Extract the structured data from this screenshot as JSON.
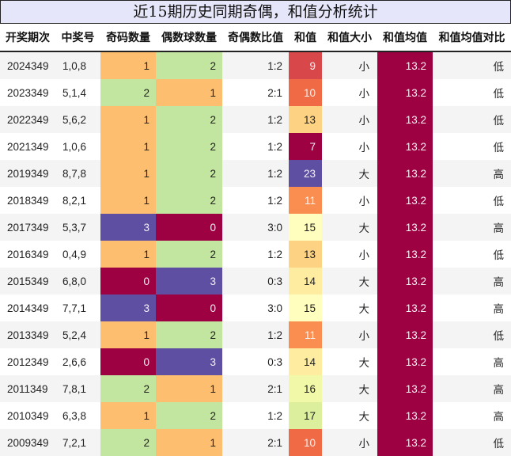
{
  "title": "近15期历史同期奇偶，和值分析统计",
  "columns": [
    "开奖期次",
    "中奖号",
    "奇码数量",
    "偶数球数量",
    "奇偶数比值",
    "和值",
    "和值大小",
    "和值均值",
    "和值均值对比"
  ],
  "colors": {
    "count_0": "#9e0142",
    "count_1": "#fdbe6f",
    "count_2": "#c2e59f",
    "count_3": "#5e4fa2",
    "sum_7": "#9e0142",
    "sum_9": "#d8474a",
    "sum_10": "#ef6a45",
    "sum_11": "#fa8e51",
    "sum_13": "#fdd282",
    "sum_14": "#feeda0",
    "sum_15": "#fffebe",
    "sum_16": "#f1f9a9",
    "sum_17": "#dbef9c",
    "sum_23": "#5e4fa2",
    "mean": "#9e0142",
    "row_odd": "#f4f4f4",
    "row_even": "#ffffff",
    "title_bg": "#e6e6fa"
  },
  "rows": [
    {
      "period": "2024349",
      "numbers": "1,0,8",
      "odd": "1",
      "even": "2",
      "ratio": "1:2",
      "sum": "9",
      "size": "小",
      "mean": "13.2",
      "compare": "低"
    },
    {
      "period": "2023349",
      "numbers": "5,1,4",
      "odd": "2",
      "even": "1",
      "ratio": "2:1",
      "sum": "10",
      "size": "小",
      "mean": "13.2",
      "compare": "低"
    },
    {
      "period": "2022349",
      "numbers": "5,6,2",
      "odd": "1",
      "even": "2",
      "ratio": "1:2",
      "sum": "13",
      "size": "小",
      "mean": "13.2",
      "compare": "低"
    },
    {
      "period": "2021349",
      "numbers": "1,0,6",
      "odd": "1",
      "even": "2",
      "ratio": "1:2",
      "sum": "7",
      "size": "小",
      "mean": "13.2",
      "compare": "低"
    },
    {
      "period": "2019349",
      "numbers": "8,7,8",
      "odd": "1",
      "even": "2",
      "ratio": "1:2",
      "sum": "23",
      "size": "大",
      "mean": "13.2",
      "compare": "高"
    },
    {
      "period": "2018349",
      "numbers": "8,2,1",
      "odd": "1",
      "even": "2",
      "ratio": "1:2",
      "sum": "11",
      "size": "小",
      "mean": "13.2",
      "compare": "低"
    },
    {
      "period": "2017349",
      "numbers": "5,3,7",
      "odd": "3",
      "even": "0",
      "ratio": "3:0",
      "sum": "15",
      "size": "大",
      "mean": "13.2",
      "compare": "高"
    },
    {
      "period": "2016349",
      "numbers": "0,4,9",
      "odd": "1",
      "even": "2",
      "ratio": "1:2",
      "sum": "13",
      "size": "小",
      "mean": "13.2",
      "compare": "低"
    },
    {
      "period": "2015349",
      "numbers": "6,8,0",
      "odd": "0",
      "even": "3",
      "ratio": "0:3",
      "sum": "14",
      "size": "大",
      "mean": "13.2",
      "compare": "高"
    },
    {
      "period": "2014349",
      "numbers": "7,7,1",
      "odd": "3",
      "even": "0",
      "ratio": "3:0",
      "sum": "15",
      "size": "大",
      "mean": "13.2",
      "compare": "高"
    },
    {
      "period": "2013349",
      "numbers": "5,2,4",
      "odd": "1",
      "even": "2",
      "ratio": "1:2",
      "sum": "11",
      "size": "小",
      "mean": "13.2",
      "compare": "低"
    },
    {
      "period": "2012349",
      "numbers": "2,6,6",
      "odd": "0",
      "even": "3",
      "ratio": "0:3",
      "sum": "14",
      "size": "大",
      "mean": "13.2",
      "compare": "高"
    },
    {
      "period": "2011349",
      "numbers": "7,8,1",
      "odd": "2",
      "even": "1",
      "ratio": "2:1",
      "sum": "16",
      "size": "大",
      "mean": "13.2",
      "compare": "高"
    },
    {
      "period": "2010349",
      "numbers": "6,3,8",
      "odd": "1",
      "even": "2",
      "ratio": "1:2",
      "sum": "17",
      "size": "大",
      "mean": "13.2",
      "compare": "高"
    },
    {
      "period": "2009349",
      "numbers": "7,2,1",
      "odd": "2",
      "even": "1",
      "ratio": "2:1",
      "sum": "10",
      "size": "小",
      "mean": "13.2",
      "compare": "低"
    }
  ]
}
